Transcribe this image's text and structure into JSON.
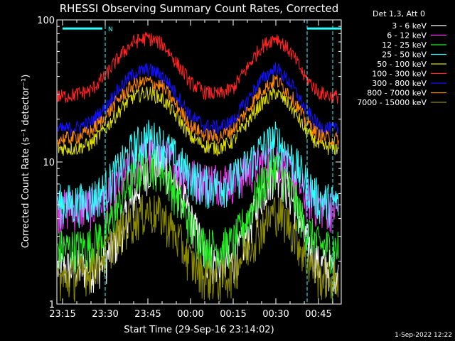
{
  "chart_data": {
    "type": "line",
    "title": "RHESSI Observing Summary Count Rates, Corrected",
    "xlabel": "Start Time (29-Sep-16 23:14:02)",
    "ylabel": "Corrected Count Rate (s⁻¹ detector⁻¹)",
    "y_scale": "log",
    "ylim": [
      1,
      100
    ],
    "xlim": [
      -2,
      98
    ],
    "y_ticks": [
      {
        "value": 1,
        "label": "1"
      },
      {
        "value": 10,
        "label": "10"
      },
      {
        "value": 100,
        "label": "100"
      }
    ],
    "x_ticks": [
      {
        "value": 0,
        "label": "23:15"
      },
      {
        "value": 15,
        "label": "23:30"
      },
      {
        "value": 30,
        "label": "23:45"
      },
      {
        "value": 45,
        "label": "00:00"
      },
      {
        "value": 60,
        "label": "00:15"
      },
      {
        "value": 75,
        "label": "00:30"
      },
      {
        "value": 90,
        "label": "00:45"
      }
    ],
    "legend_title": "Det 1,3, Att 0",
    "legend_position": "top-right, outside plot",
    "grid": false,
    "x": [
      0,
      5,
      10,
      15,
      20,
      25,
      30,
      35,
      40,
      45,
      50,
      55,
      60,
      65,
      70,
      75,
      80,
      85,
      90,
      95
    ],
    "series": [
      {
        "name": "3 - 6 keV",
        "color": "#ffffff",
        "values": [
          1.8,
          1.8,
          1.8,
          2.0,
          3.0,
          5.5,
          9.0,
          10.0,
          7.0,
          4.0,
          2.2,
          1.9,
          2.0,
          3.0,
          6.0,
          9.0,
          6.0,
          3.0,
          1.9,
          1.8
        ]
      },
      {
        "name": "6 - 12 keV",
        "color": "#ff33ff",
        "values": [
          4.8,
          4.8,
          4.9,
          5.4,
          7.0,
          9.5,
          11.5,
          11.0,
          9.5,
          8.0,
          7.5,
          7.5,
          7.6,
          8.5,
          10.0,
          11.0,
          8.5,
          6.0,
          5.0,
          4.8
        ]
      },
      {
        "name": "12 - 25 keV",
        "color": "#22ee22",
        "values": [
          2.5,
          2.5,
          2.6,
          3.2,
          5.0,
          8.0,
          10.0,
          9.0,
          6.0,
          3.5,
          2.6,
          2.5,
          2.7,
          4.0,
          7.0,
          9.5,
          6.5,
          3.5,
          2.6,
          2.5
        ]
      },
      {
        "name": "25 - 50 keV",
        "color": "#33ffff",
        "values": [
          5.2,
          5.2,
          5.5,
          6.5,
          9.0,
          12.5,
          15.0,
          13.5,
          10.5,
          8.0,
          7.0,
          7.0,
          7.5,
          9.5,
          12.5,
          14.5,
          11.0,
          7.5,
          5.5,
          5.2
        ]
      },
      {
        "name": "50 - 100 keV",
        "color": "#dddd00",
        "values": [
          12.5,
          12.5,
          13.5,
          17.0,
          23.0,
          29.0,
          31.0,
          28.0,
          21.0,
          15.0,
          13.0,
          12.5,
          14.0,
          19.0,
          26.0,
          31.0,
          25.0,
          17.0,
          13.0,
          12.5
        ]
      },
      {
        "name": "100 - 300 keV",
        "color": "#ff2222",
        "values": [
          29.0,
          30.0,
          32.0,
          40.0,
          55.0,
          70.0,
          75.0,
          68.0,
          50.0,
          36.0,
          31.0,
          30.0,
          33.0,
          46.0,
          65.0,
          76.0,
          60.0,
          40.0,
          31.0,
          29.0
        ]
      },
      {
        "name": "300 - 800 keV",
        "color": "#1111ff",
        "values": [
          17.0,
          17.5,
          19.0,
          24.0,
          33.0,
          42.0,
          45.0,
          41.0,
          30.0,
          21.0,
          18.0,
          17.5,
          19.5,
          27.0,
          38.0,
          46.0,
          36.0,
          24.0,
          18.0,
          17.0
        ]
      },
      {
        "name": "800 - 7000 keV",
        "color": "#ff8800",
        "values": [
          14.5,
          15.0,
          16.5,
          20.5,
          28.0,
          35.0,
          37.0,
          34.0,
          25.0,
          18.0,
          15.5,
          15.0,
          17.0,
          23.0,
          32.0,
          38.0,
          30.0,
          20.0,
          15.5,
          14.5
        ]
      },
      {
        "name": "7000 - 15000 keV",
        "color": "#8b8b00",
        "values": [
          1.5,
          1.6,
          1.8,
          2.3,
          3.2,
          4.0,
          4.6,
          4.2,
          3.0,
          2.0,
          1.6,
          1.5,
          1.7,
          2.5,
          3.5,
          4.6,
          3.6,
          2.2,
          1.6,
          1.5
        ]
      }
    ],
    "marker_lines": {
      "color": "#33ffff",
      "vertical_x": [
        15,
        86,
        95
      ],
      "bars": [
        {
          "x_start": 0,
          "x_end": 14,
          "y": 87
        },
        {
          "x_start": 86,
          "x_end": 98,
          "y": 87
        }
      ],
      "bar_label": "N"
    },
    "footer_date": "1-Sep-2022 12:22"
  }
}
